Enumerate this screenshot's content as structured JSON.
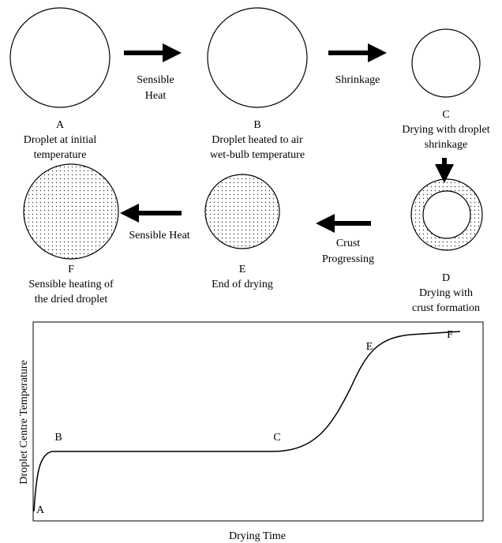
{
  "stages": [
    {
      "letter": "A",
      "caption": [
        "Droplet at initial",
        "temperature"
      ]
    },
    {
      "letter": "B",
      "caption": [
        "Droplet heated to air",
        "wet-bulb temperature"
      ]
    },
    {
      "letter": "C",
      "caption": [
        "Drying with droplet",
        "shrinkage"
      ]
    },
    {
      "letter": "D",
      "caption": [
        "Drying with",
        "crust formation"
      ]
    },
    {
      "letter": "E",
      "caption": [
        "End of drying"
      ]
    },
    {
      "letter": "F",
      "caption": [
        "Sensible heating of",
        "the dried droplet"
      ]
    }
  ],
  "arrows": [
    {
      "label": [
        "Sensible",
        "Heat"
      ]
    },
    {
      "label": [
        "Shrinkage"
      ]
    },
    {
      "label": [
        "Crust",
        "Progressing"
      ]
    },
    {
      "label": [
        "Sensible Heat"
      ]
    }
  ],
  "plot": {
    "y_label": "Droplet Centre Temperature",
    "x_label": "Drying Time",
    "points": [
      "A",
      "B",
      "C",
      "E",
      "F"
    ]
  }
}
